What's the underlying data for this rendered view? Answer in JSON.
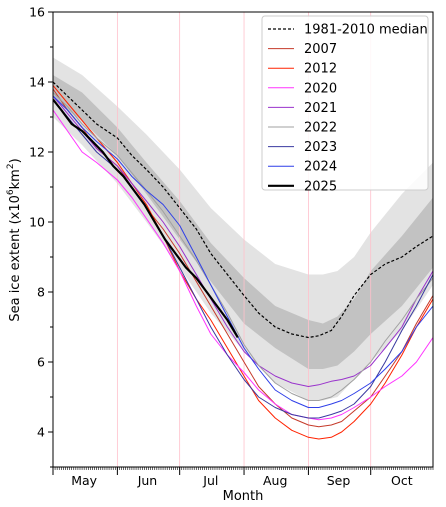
{
  "chart_data": {
    "type": "line",
    "xlabel": "Month",
    "ylabel_main": "Sea ice extent (x10",
    "ylabel_sup1": "6",
    "ylabel_mid": "km",
    "ylabel_sup2": "2",
    "ylabel_end": ")",
    "ylim": [
      3,
      16
    ],
    "yticks": [
      4,
      6,
      8,
      10,
      12,
      14,
      16
    ],
    "x_unit": "day of year",
    "xlim": [
      121,
      304
    ],
    "months": [
      {
        "label": "May",
        "start": 121,
        "mid": 136
      },
      {
        "label": "Jun",
        "start": 152,
        "mid": 166.5
      },
      {
        "label": "Jul",
        "start": 182,
        "mid": 197
      },
      {
        "label": "Aug",
        "start": 213,
        "mid": 228
      },
      {
        "label": "Sep",
        "start": 244,
        "mid": 258.5
      },
      {
        "label": "Oct",
        "start": 274,
        "mid": 289
      }
    ],
    "bands": {
      "x": [
        121,
        135,
        152,
        166,
        182,
        197,
        213,
        228,
        244,
        251,
        258,
        266,
        274,
        289,
        304
      ],
      "outer_low": [
        13.0,
        12.2,
        11.1,
        10.0,
        8.7,
        7.4,
        6.3,
        5.4,
        4.9,
        4.9,
        5.0,
        5.5,
        6.0,
        6.9,
        8.2
      ],
      "outer_high": [
        14.7,
        14.2,
        13.3,
        12.5,
        11.5,
        10.4,
        9.5,
        8.8,
        8.5,
        8.5,
        8.6,
        9.0,
        9.7,
        10.8,
        11.7
      ],
      "inner_low": [
        13.5,
        12.9,
        11.9,
        10.8,
        9.5,
        8.3,
        7.1,
        6.4,
        5.8,
        5.8,
        5.9,
        6.3,
        6.8,
        7.6,
        8.7
      ],
      "inner_high": [
        14.2,
        13.7,
        12.7,
        11.7,
        10.6,
        9.4,
        8.4,
        7.6,
        7.2,
        7.1,
        7.3,
        7.8,
        8.6,
        9.6,
        10.7
      ]
    },
    "band_colors": {
      "outer": "#e3e3e3",
      "inner": "#c2c2c2"
    },
    "series": [
      {
        "name": "1981-2010 median",
        "color": "#000000",
        "dash": true,
        "width": 1.2,
        "x": [
          121,
          128,
          135,
          142,
          152,
          159,
          166,
          174,
          182,
          190,
          197,
          205,
          213,
          220,
          228,
          236,
          244,
          249,
          255,
          260,
          266,
          274,
          281,
          289,
          296,
          304
        ],
        "y": [
          14.0,
          13.6,
          13.2,
          12.8,
          12.4,
          11.9,
          11.5,
          11.0,
          10.4,
          9.8,
          9.1,
          8.5,
          7.9,
          7.4,
          7.0,
          6.8,
          6.7,
          6.75,
          6.9,
          7.3,
          7.9,
          8.5,
          8.8,
          9.0,
          9.3,
          9.6
        ]
      },
      {
        "name": "2007",
        "color": "#c53a2a",
        "dash": false,
        "width": 1,
        "x": [
          121,
          128,
          135,
          142,
          152,
          159,
          166,
          174,
          182,
          190,
          197,
          205,
          213,
          220,
          228,
          236,
          244,
          249,
          255,
          260,
          266,
          274,
          281,
          289,
          296,
          304
        ],
        "y": [
          13.8,
          13.2,
          12.7,
          12.1,
          11.6,
          11.0,
          10.4,
          9.8,
          9.1,
          8.3,
          7.6,
          6.8,
          6.0,
          5.3,
          4.8,
          4.4,
          4.2,
          4.15,
          4.2,
          4.3,
          4.6,
          5.0,
          5.6,
          6.3,
          7.1,
          7.9
        ]
      },
      {
        "name": "2012",
        "color": "#ff2200",
        "dash": false,
        "width": 1,
        "x": [
          121,
          128,
          135,
          142,
          152,
          159,
          166,
          174,
          182,
          190,
          197,
          205,
          213,
          220,
          228,
          236,
          244,
          249,
          255,
          260,
          266,
          274,
          281,
          289,
          296,
          304
        ],
        "y": [
          13.9,
          13.4,
          12.9,
          12.4,
          11.7,
          11.1,
          10.5,
          9.6,
          8.6,
          7.8,
          7.2,
          6.4,
          5.6,
          4.9,
          4.4,
          4.05,
          3.85,
          3.8,
          3.85,
          4.0,
          4.3,
          4.8,
          5.4,
          6.2,
          7.0,
          7.8
        ]
      },
      {
        "name": "2020",
        "color": "#ff33ff",
        "dash": false,
        "width": 1,
        "x": [
          121,
          128,
          135,
          142,
          152,
          159,
          166,
          174,
          182,
          190,
          197,
          205,
          213,
          220,
          228,
          236,
          244,
          249,
          255,
          260,
          266,
          274,
          281,
          289,
          296,
          304
        ],
        "y": [
          13.2,
          12.6,
          12.0,
          11.7,
          11.2,
          10.7,
          10.1,
          9.4,
          8.6,
          7.6,
          6.8,
          6.2,
          5.7,
          5.2,
          4.8,
          4.5,
          4.4,
          4.35,
          4.4,
          4.5,
          4.7,
          5.0,
          5.3,
          5.6,
          6.0,
          6.7
        ]
      },
      {
        "name": "2021",
        "color": "#9933cc",
        "dash": false,
        "width": 1,
        "x": [
          121,
          128,
          135,
          142,
          152,
          159,
          166,
          174,
          182,
          190,
          197,
          205,
          213,
          220,
          228,
          236,
          244,
          249,
          255,
          260,
          266,
          274,
          281,
          289,
          296,
          304
        ],
        "y": [
          13.6,
          13.1,
          12.6,
          12.1,
          11.6,
          11.1,
          10.6,
          10.0,
          9.3,
          8.5,
          7.8,
          7.0,
          6.3,
          5.9,
          5.6,
          5.4,
          5.3,
          5.35,
          5.45,
          5.5,
          5.6,
          5.9,
          6.4,
          7.0,
          7.8,
          8.6
        ]
      },
      {
        "name": "2022",
        "color": "#a0a0a0",
        "dash": false,
        "width": 1,
        "x": [
          121,
          128,
          135,
          142,
          152,
          159,
          166,
          174,
          182,
          190,
          197,
          205,
          213,
          220,
          228,
          236,
          244,
          249,
          255,
          260,
          266,
          274,
          281,
          289,
          296,
          304
        ],
        "y": [
          13.7,
          13.3,
          12.8,
          12.4,
          11.9,
          11.4,
          10.9,
          10.3,
          9.6,
          8.9,
          8.2,
          7.4,
          6.5,
          5.9,
          5.4,
          5.1,
          4.9,
          4.9,
          5.0,
          5.2,
          5.5,
          6.0,
          6.6,
          7.2,
          7.8,
          8.4
        ]
      },
      {
        "name": "2023",
        "color": "#3a3aa0",
        "dash": false,
        "width": 1,
        "x": [
          121,
          128,
          135,
          142,
          152,
          159,
          166,
          174,
          182,
          190,
          197,
          205,
          213,
          220,
          228,
          236,
          244,
          249,
          255,
          260,
          266,
          274,
          281,
          289,
          296,
          304
        ],
        "y": [
          13.5,
          13.0,
          12.5,
          12.0,
          11.5,
          11.0,
          10.4,
          9.6,
          8.7,
          7.8,
          7.0,
          6.2,
          5.5,
          5.0,
          4.7,
          4.5,
          4.4,
          4.4,
          4.5,
          4.6,
          4.8,
          5.3,
          6.0,
          6.9,
          7.6,
          8.5
        ]
      },
      {
        "name": "2024",
        "color": "#2f3fe8",
        "dash": false,
        "width": 1,
        "x": [
          121,
          128,
          135,
          142,
          152,
          159,
          166,
          174,
          182,
          190,
          197,
          205,
          213,
          220,
          228,
          236,
          244,
          249,
          255,
          260,
          266,
          274,
          281,
          289,
          296,
          304
        ],
        "y": [
          13.6,
          13.2,
          12.7,
          12.3,
          11.8,
          11.3,
          10.9,
          10.5,
          9.9,
          9.0,
          8.2,
          7.3,
          6.4,
          5.8,
          5.2,
          4.9,
          4.7,
          4.7,
          4.8,
          4.9,
          5.1,
          5.4,
          5.8,
          6.3,
          7.0,
          7.6
        ]
      },
      {
        "name": "2025",
        "color": "#000000",
        "dash": false,
        "width": 2.2,
        "x": [
          121,
          125,
          130,
          135,
          140,
          145,
          150,
          155,
          160,
          165,
          170,
          175,
          180,
          185,
          190,
          195,
          200,
          205,
          208,
          210
        ],
        "y": [
          13.5,
          13.2,
          12.8,
          12.6,
          12.3,
          12.0,
          11.6,
          11.3,
          10.9,
          10.5,
          10.0,
          9.5,
          9.1,
          8.7,
          8.4,
          8.0,
          7.6,
          7.2,
          6.9,
          6.7
        ]
      }
    ],
    "legend_position": "upper right",
    "grid": {
      "vertical_month_lines": true,
      "color": "#ffc0cb"
    }
  }
}
